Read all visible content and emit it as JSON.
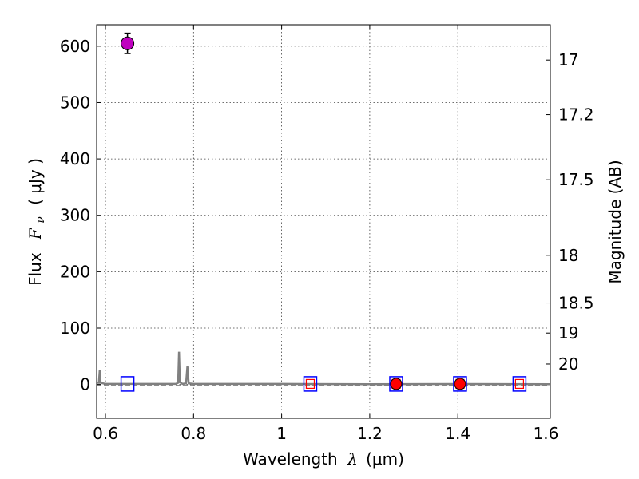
{
  "chart_data": {
    "type": "scatter",
    "xlabel": "Wavelength",
    "xlabel_symbol": "λ",
    "xlabel_unit": "(μm)",
    "ylabel": "Flux",
    "ylabel_symbol": "F",
    "ylabel_subscript": "ν",
    "ylabel_unit": "( μJy )",
    "y2label": "Magnitude (AB)",
    "xlim": [
      0.58,
      1.61
    ],
    "ylim": [
      -60,
      638
    ],
    "grid": true,
    "x_ticks": [
      {
        "value": 0.6,
        "label": "0.6"
      },
      {
        "value": 0.8,
        "label": "0.8"
      },
      {
        "value": 1.0,
        "label": "1"
      },
      {
        "value": 1.2,
        "label": "1.2"
      },
      {
        "value": 1.4,
        "label": "1.4"
      },
      {
        "value": 1.6,
        "label": "1.6"
      }
    ],
    "y_ticks": [
      {
        "value": 0,
        "label": "0"
      },
      {
        "value": 100,
        "label": "100"
      },
      {
        "value": 200,
        "label": "200"
      },
      {
        "value": 300,
        "label": "300"
      },
      {
        "value": 400,
        "label": "400"
      },
      {
        "value": 500,
        "label": "500"
      },
      {
        "value": 600,
        "label": "600"
      }
    ],
    "mag_ticks": [
      {
        "value": 17,
        "label": "17"
      },
      {
        "value": 17.2,
        "label": "17.2"
      },
      {
        "value": 17.5,
        "label": "17.5"
      },
      {
        "value": 18,
        "label": "18"
      },
      {
        "value": 18.5,
        "label": "18.5"
      },
      {
        "value": 19,
        "label": "19"
      },
      {
        "value": 20,
        "label": "20"
      }
    ],
    "detections": [
      {
        "x": 0.65,
        "y": 605,
        "err": 18,
        "color": "#bf00bf"
      }
    ],
    "observed": [
      {
        "x": 1.26,
        "y": 1,
        "color": "#ff0000"
      },
      {
        "x": 1.405,
        "y": 1,
        "color": "#ff0000"
      }
    ],
    "model_photometry": [
      {
        "x": 1.065,
        "y": 1,
        "color": "#ff0000"
      },
      {
        "x": 1.26,
        "y": 1,
        "color": "#ff0000"
      },
      {
        "x": 1.405,
        "y": 1,
        "color": "#ff0000"
      },
      {
        "x": 1.54,
        "y": 1,
        "color": "#ff0000"
      }
    ],
    "filter_boxes": [
      {
        "x": 0.65,
        "y": 1,
        "color": "#0000ff"
      },
      {
        "x": 1.065,
        "y": 1,
        "color": "#0000ff"
      },
      {
        "x": 1.26,
        "y": 1,
        "color": "#0000ff"
      },
      {
        "x": 1.405,
        "y": 1,
        "color": "#0000ff"
      },
      {
        "x": 1.54,
        "y": 1,
        "color": "#0000ff"
      }
    ],
    "model_spectrum": {
      "color": "#808080",
      "points": [
        [
          0.58,
          3
        ],
        [
          0.585,
          3
        ],
        [
          0.587,
          25
        ],
        [
          0.589,
          3
        ],
        [
          0.6,
          1
        ],
        [
          0.76,
          1
        ],
        [
          0.765,
          3
        ],
        [
          0.767,
          58
        ],
        [
          0.769,
          4
        ],
        [
          0.775,
          1
        ],
        [
          0.783,
          2
        ],
        [
          0.786,
          32
        ],
        [
          0.789,
          2
        ],
        [
          0.8,
          1
        ],
        [
          1.0,
          1
        ],
        [
          1.2,
          0.5
        ],
        [
          1.4,
          0.8
        ],
        [
          1.61,
          0.5
        ]
      ]
    },
    "baseline": {
      "y": -1.5,
      "color": "#808080"
    }
  }
}
